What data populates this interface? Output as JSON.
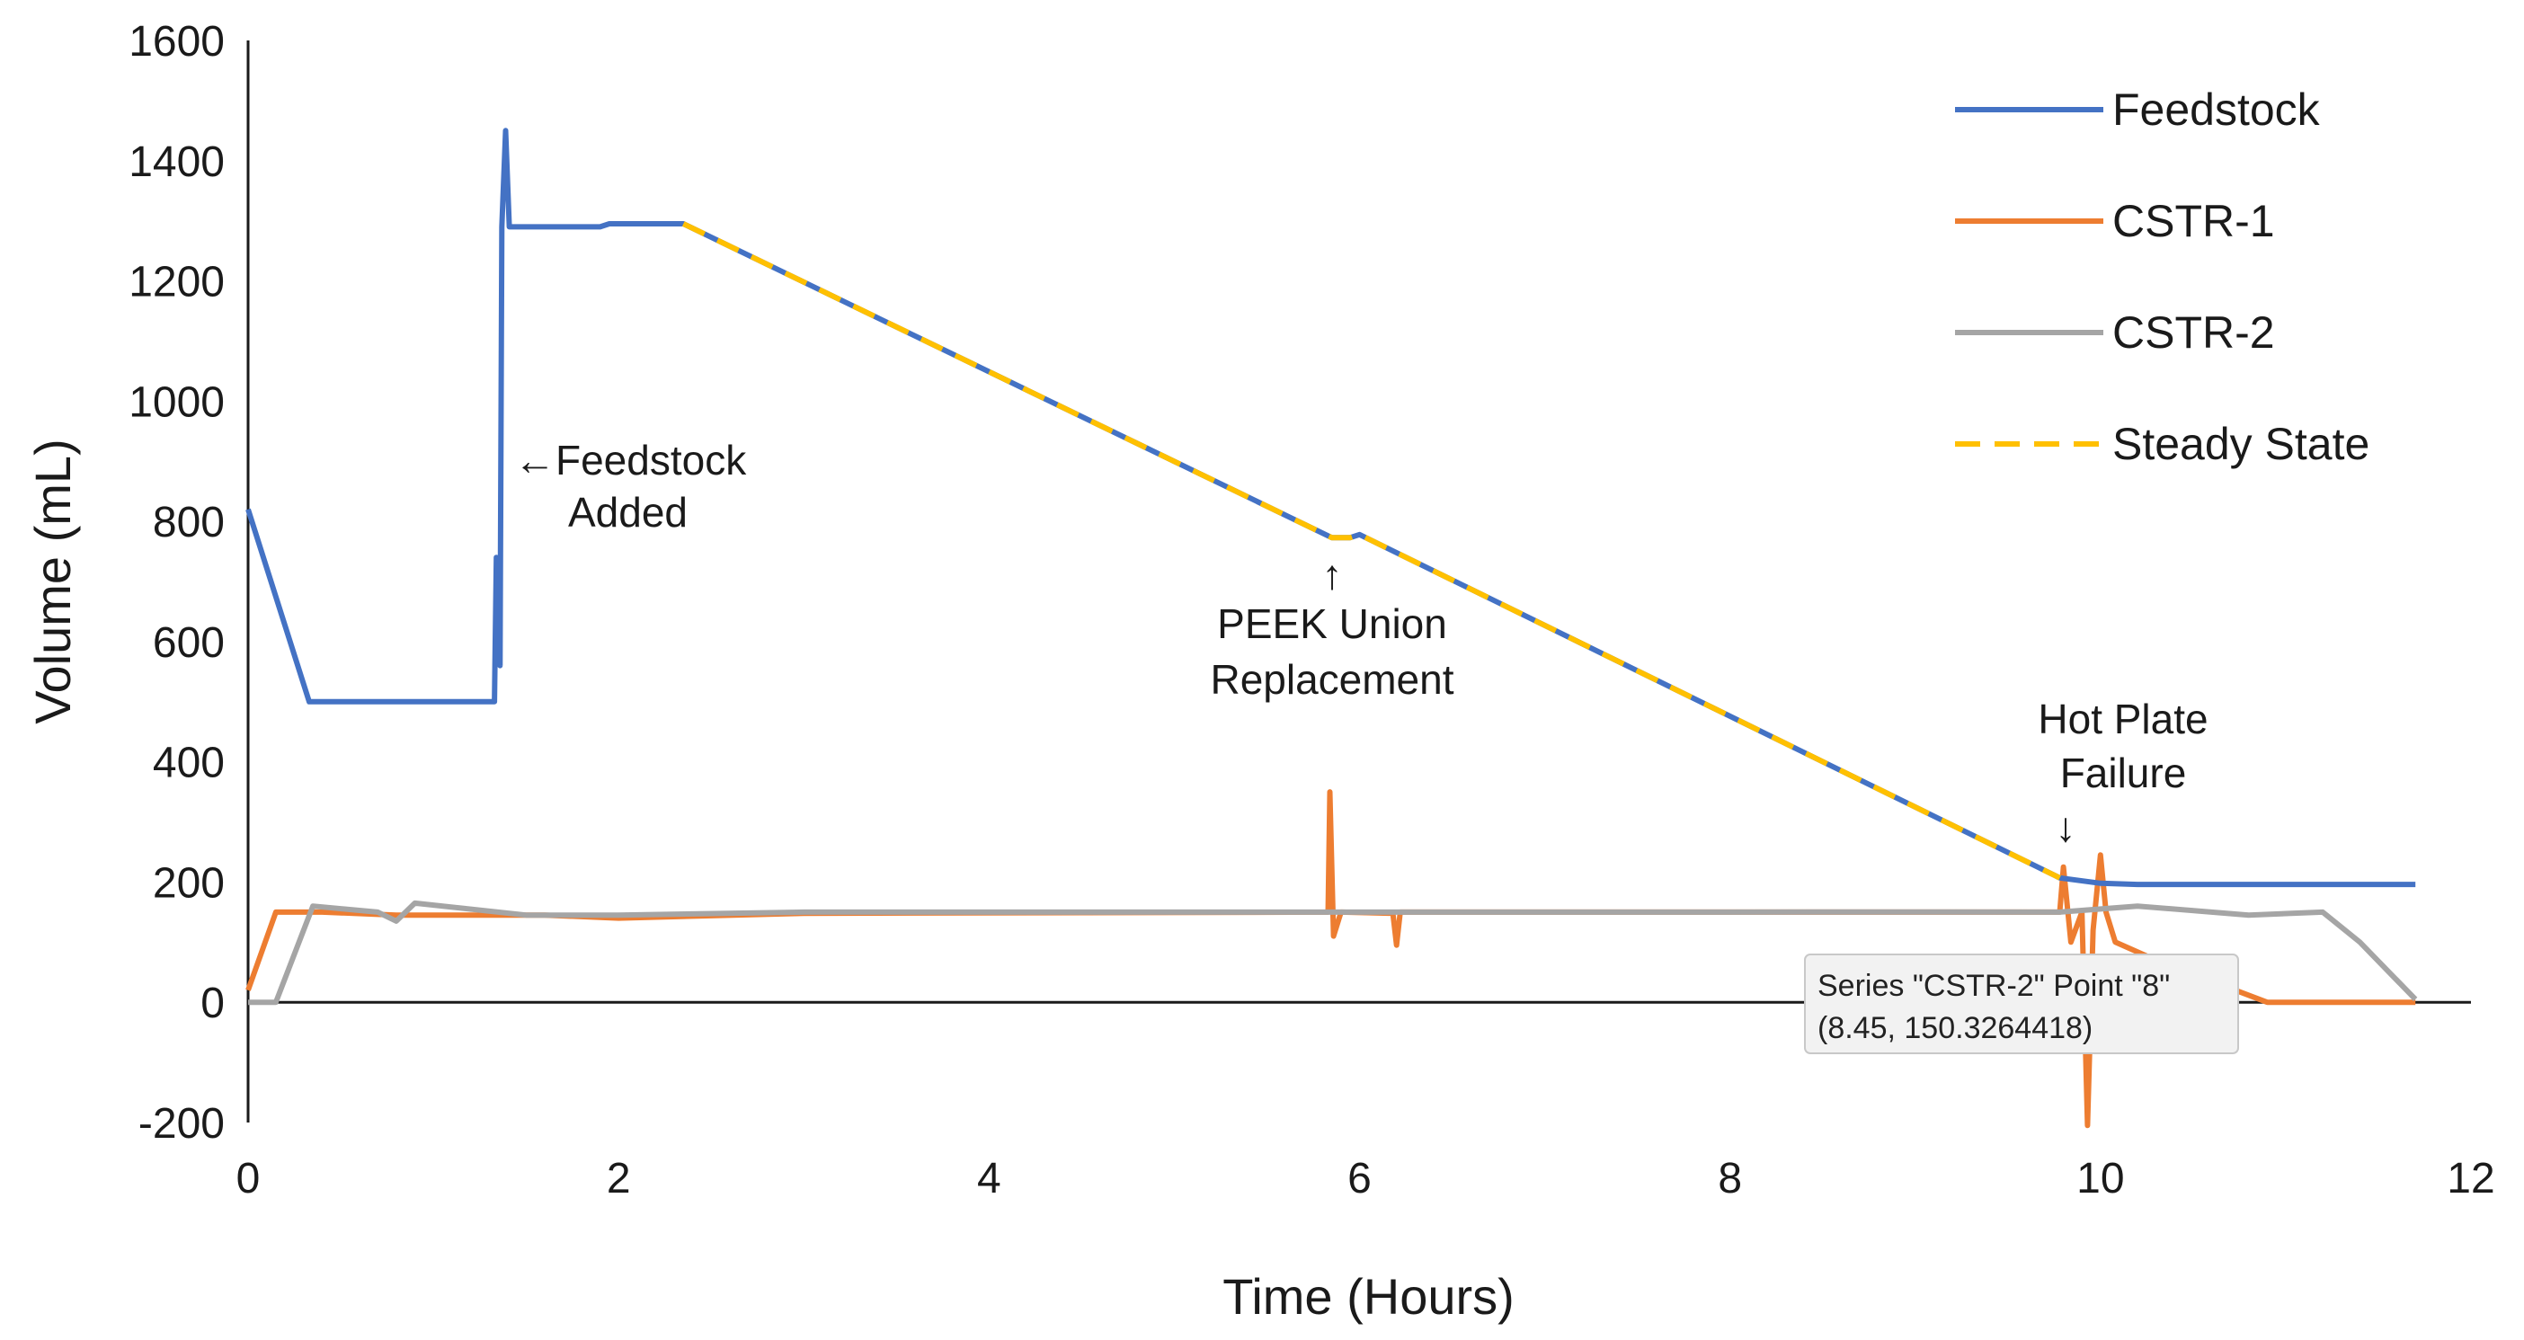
{
  "chart_data": {
    "type": "line",
    "xlabel": "Time (Hours)",
    "ylabel": "Volume (mL)",
    "xlim": [
      0,
      12
    ],
    "ylim": [
      -200,
      1600
    ],
    "x_ticks": [
      "0",
      "2",
      "4",
      "6",
      "8",
      "10",
      "12"
    ],
    "y_ticks": [
      "-200",
      "0",
      "200",
      "400",
      "600",
      "800",
      "1000",
      "1200",
      "1400",
      "1600"
    ],
    "grid": false,
    "legend_position": "top-right",
    "series": [
      {
        "name": "Feedstock",
        "color": "#4472C4",
        "style": "solid",
        "points": [
          [
            0,
            820
          ],
          [
            0.33,
            500
          ],
          [
            1.33,
            500
          ],
          [
            1.34,
            740
          ],
          [
            1.36,
            560
          ],
          [
            1.37,
            1290
          ],
          [
            1.39,
            1450
          ],
          [
            1.41,
            1290
          ],
          [
            1.9,
            1290
          ],
          [
            1.95,
            1295
          ],
          [
            2.35,
            1295
          ],
          [
            5.85,
            773
          ],
          [
            5.95,
            773
          ],
          [
            6.0,
            778
          ],
          [
            9.78,
            207
          ],
          [
            10.0,
            198
          ],
          [
            10.2,
            196
          ],
          [
            11.7,
            196
          ]
        ]
      },
      {
        "name": "CSTR-1",
        "color": "#ED7D31",
        "style": "solid",
        "points": [
          [
            0,
            20
          ],
          [
            0.15,
            150
          ],
          [
            0.4,
            150
          ],
          [
            0.8,
            145
          ],
          [
            1.6,
            145
          ],
          [
            2.0,
            140
          ],
          [
            3.0,
            148
          ],
          [
            5.83,
            150
          ],
          [
            5.84,
            350
          ],
          [
            5.86,
            110
          ],
          [
            5.9,
            150
          ],
          [
            6.18,
            148
          ],
          [
            6.2,
            95
          ],
          [
            6.22,
            150
          ],
          [
            9.78,
            150
          ],
          [
            9.8,
            225
          ],
          [
            9.84,
            100
          ],
          [
            9.9,
            150
          ],
          [
            9.93,
            -205
          ],
          [
            9.96,
            120
          ],
          [
            10.0,
            245
          ],
          [
            10.03,
            150
          ],
          [
            10.08,
            100
          ],
          [
            10.3,
            70
          ],
          [
            10.6,
            35
          ],
          [
            10.9,
            0
          ],
          [
            11.7,
            0
          ]
        ]
      },
      {
        "name": "CSTR-2",
        "color": "#A5A5A5",
        "style": "solid",
        "points": [
          [
            0,
            0
          ],
          [
            0.15,
            0
          ],
          [
            0.35,
            160
          ],
          [
            0.7,
            150
          ],
          [
            0.8,
            135
          ],
          [
            0.9,
            165
          ],
          [
            1.5,
            145
          ],
          [
            2.0,
            145
          ],
          [
            3.0,
            150
          ],
          [
            5.0,
            150
          ],
          [
            6.0,
            150
          ],
          [
            8.0,
            150
          ],
          [
            8.45,
            150.3264418
          ],
          [
            9.78,
            150
          ],
          [
            10.2,
            160
          ],
          [
            10.8,
            145
          ],
          [
            11.2,
            150
          ],
          [
            11.4,
            100
          ],
          [
            11.7,
            5
          ]
        ]
      },
      {
        "name": "Steady State",
        "color": "#FFC000",
        "style": "dashed",
        "points": [
          [
            2.35,
            1295
          ],
          [
            5.85,
            773
          ],
          [
            5.95,
            773
          ],
          [
            6.0,
            778
          ],
          [
            9.78,
            207
          ]
        ]
      }
    ],
    "annotations": [
      {
        "lines": [
          "←Feedstock",
          "Added"
        ],
        "x": 1.4,
        "y": 920
      },
      {
        "lines": [
          "↑",
          "PEEK Union",
          "Replacement"
        ],
        "x": 5.85,
        "y": 760
      },
      {
        "lines": [
          "Hot Plate",
          "Failure",
          "↓"
        ],
        "x": 9.78,
        "y": 230
      }
    ],
    "tooltip": {
      "line1": "Series \"CSTR-2\" Point \"8\"",
      "line2": "(8.45, 150.3264418)"
    }
  }
}
